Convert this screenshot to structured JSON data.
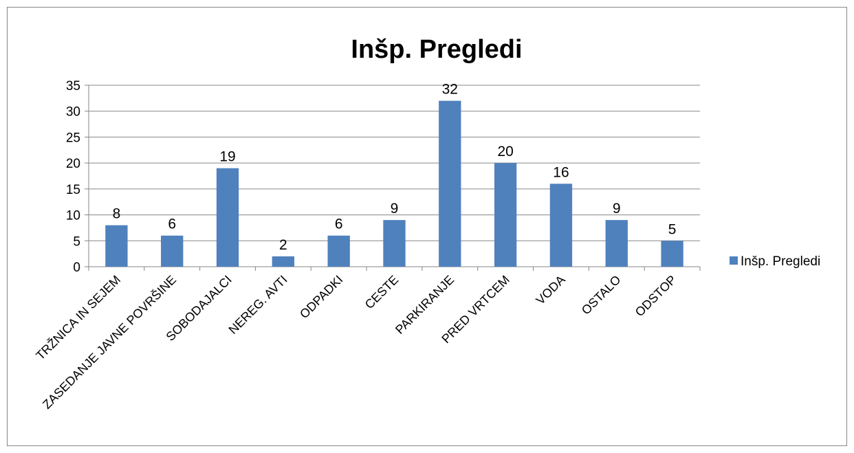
{
  "chart_data": {
    "type": "bar",
    "title": "Inšp. Pregledi",
    "xlabel": "",
    "ylabel": "",
    "categories": [
      "TRŽNICA IN SEJEM",
      "ZASEDANJE JAVNE POVRŠINE",
      "SOBODAJALCI",
      "NEREG. AVTI",
      "ODPADKI",
      "CESTE",
      "PARKIRANJE",
      "PRED VRTCEM",
      "VODA",
      "OSTALO",
      "ODSTOP"
    ],
    "series": [
      {
        "name": "Inšp. Pregledi",
        "values": [
          8,
          6,
          19,
          2,
          6,
          9,
          32,
          20,
          16,
          9,
          5
        ],
        "color": "#4F81BD"
      }
    ],
    "ylim": [
      0,
      35
    ],
    "yticks": [
      "0",
      "5",
      "10",
      "15",
      "20",
      "25",
      "30",
      "35"
    ],
    "grid": true,
    "data_labels": true,
    "legend_position": "right",
    "colors": {
      "bar": "#4F81BD",
      "grid": "#868686",
      "axis": "#868686",
      "border": "#868686"
    }
  }
}
